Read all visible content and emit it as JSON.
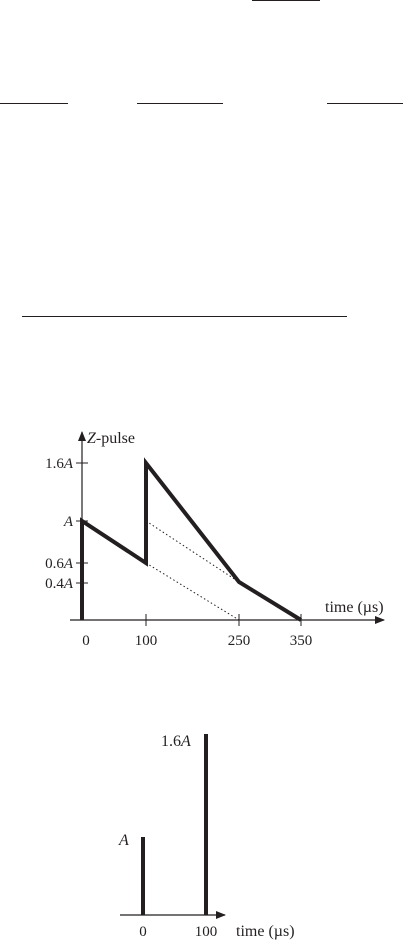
{
  "upper_chart": {
    "y_axis_label_letter": "Z",
    "y_axis_label_rest": "-pulse",
    "x_axis_label": "time (µs)",
    "x_ticks": [
      "0",
      "100",
      "250",
      "350"
    ],
    "y_ticks": [
      {
        "num": "1.6",
        "sym": "A"
      },
      {
        "sym": "A"
      },
      {
        "num": "0.6",
        "sym": "A"
      },
      {
        "num": "0.4",
        "sym": "A"
      }
    ]
  },
  "lower_chart": {
    "x_axis_label": "time (µs)",
    "x_ticks": [
      "0",
      "100"
    ],
    "spike_labels": [
      {
        "sym": "A"
      },
      {
        "num": "1.6",
        "sym": "A"
      }
    ]
  },
  "chart_data": [
    {
      "type": "line",
      "ylabel": "Z-pulse",
      "xlabel": "time (µs)",
      "xticks": [
        0,
        100,
        250,
        350
      ],
      "yticks": [
        1.6,
        1.0,
        0.6,
        0.4
      ],
      "series": [
        {
          "x": [
            0,
            0,
            100,
            100,
            250,
            350
          ],
          "y": [
            0,
            1.0,
            0.6,
            1.6,
            0.4,
            0
          ]
        }
      ],
      "dotted_lines": [
        {
          "x": [
            100,
            250
          ],
          "y": [
            1.0,
            0.4
          ]
        },
        {
          "x": [
            100,
            250
          ],
          "y": [
            0.6,
            0
          ]
        }
      ]
    },
    {
      "type": "bar",
      "xlabel": "time (µs)",
      "x": [
        0,
        100
      ],
      "values": [
        1.0,
        1.6
      ]
    }
  ]
}
